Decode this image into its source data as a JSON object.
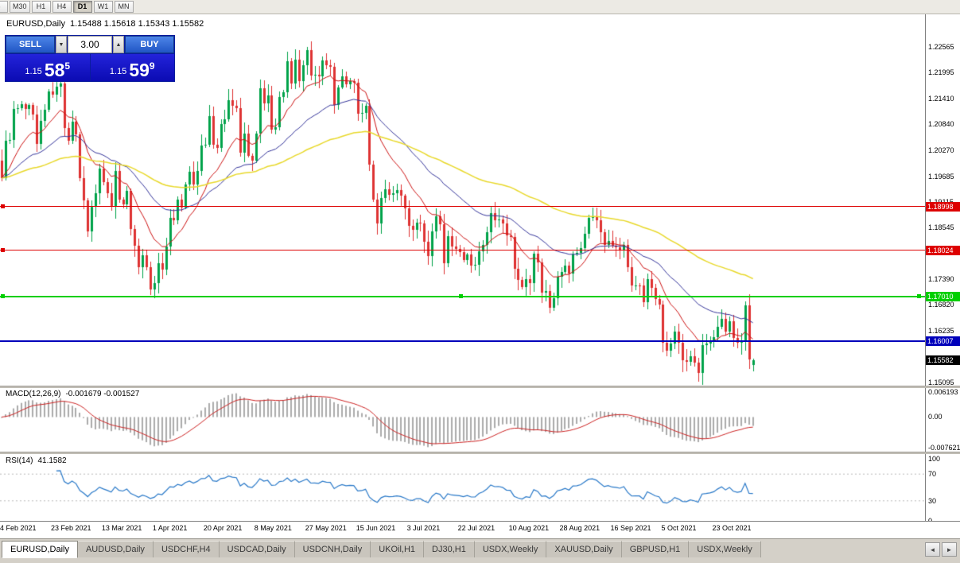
{
  "toolbar": {
    "periods": [
      "5",
      "M30",
      "H1",
      "H4",
      "D1",
      "W1",
      "MN"
    ],
    "active": "D1"
  },
  "chart": {
    "symbol_period": "EURUSD,Daily",
    "ohlc_text": "1.15488 1.15618 1.15343 1.15582"
  },
  "trade_panel": {
    "sell_label": "SELL",
    "buy_label": "BUY",
    "volume": "3.00",
    "sell_price": {
      "prefix": "1.15",
      "big": "58",
      "sup": "5"
    },
    "buy_price": {
      "prefix": "1.15",
      "big": "59",
      "sup": "9"
    }
  },
  "icons": {
    "volume_down": "▼",
    "volume_up": "▲",
    "tabs_scroll_left": "◄",
    "tabs_scroll_right": "►"
  },
  "price_axis": {
    "ticks": [
      "1.22565",
      "1.21995",
      "1.21410",
      "1.20840",
      "1.20270",
      "1.19685",
      "1.19115",
      "1.18545",
      "1.17390",
      "1.16820",
      "1.16235",
      "1.15095"
    ],
    "current_price": {
      "label": "1.15582",
      "price": 1.15582,
      "color": "#000000"
    }
  },
  "chart_data": {
    "type": "candlestick",
    "symbol": "EURUSD",
    "timeframe": "Daily",
    "last_candle": {
      "open": 1.15488,
      "high": 1.15618,
      "low": 1.15343,
      "close": 1.15582
    },
    "ylim": [
      1.1502,
      1.2329
    ],
    "candle_up_color": "#00a24a",
    "candle_down_color": "#de3232",
    "closes": [
      1.1964,
      1.2048,
      1.205,
      1.2119,
      1.212,
      1.2129,
      1.2119,
      1.2127,
      1.2105,
      1.204,
      1.2091,
      1.2117,
      1.2157,
      1.215,
      1.2168,
      1.2175,
      1.2075,
      1.2047,
      1.209,
      1.2062,
      1.1965,
      1.1915,
      1.1845,
      1.19,
      1.193,
      1.1985,
      1.1955,
      1.193,
      1.19,
      1.198,
      1.1917,
      1.1905,
      1.1935,
      1.185,
      1.1813,
      1.1765,
      1.1793,
      1.1765,
      1.1716,
      1.173,
      1.1775,
      1.176,
      1.1812,
      1.1875,
      1.187,
      1.1916,
      1.1899,
      1.195,
      1.1978,
      1.195,
      1.1981,
      1.2036,
      1.2038,
      1.2102,
      1.2038,
      1.2031,
      1.2084,
      1.2095,
      1.2138,
      1.2125,
      1.212,
      1.202,
      1.2063,
      1.2014,
      1.2003,
      1.2063,
      1.2165,
      1.213,
      1.2148,
      1.2073,
      1.2078,
      1.2145,
      1.2155,
      1.2224,
      1.2175,
      1.2228,
      1.218,
      1.2215,
      1.225,
      1.2192,
      1.2195,
      1.219,
      1.2227,
      1.2215,
      1.2212,
      1.2127,
      1.2166,
      1.219,
      1.2174,
      1.218,
      1.2177,
      1.2107,
      1.211,
      1.2125,
      1.1995,
      1.1917,
      1.1863,
      1.192,
      1.194,
      1.1927,
      1.193,
      1.1937,
      1.1925,
      1.1897,
      1.1858,
      1.1849,
      1.1865,
      1.1863,
      1.1823,
      1.179,
      1.1845,
      1.1879,
      1.1861,
      1.1775,
      1.1835,
      1.1812,
      1.1807,
      1.18,
      1.1782,
      1.1794,
      1.177,
      1.1771,
      1.1801,
      1.1816,
      1.1843,
      1.1887,
      1.187,
      1.1872,
      1.1864,
      1.1836,
      1.1833,
      1.1762,
      1.1738,
      1.1721,
      1.1739,
      1.173,
      1.1796,
      1.1777,
      1.171,
      1.1712,
      1.1675,
      1.1697,
      1.1745,
      1.1755,
      1.177,
      1.1752,
      1.1795,
      1.1797,
      1.1809,
      1.184,
      1.1875,
      1.188,
      1.187,
      1.1843,
      1.1816,
      1.1825,
      1.1813,
      1.181,
      1.1803,
      1.1816,
      1.1766,
      1.1725,
      1.1726,
      1.1725,
      1.1688,
      1.174,
      1.172,
      1.1695,
      1.1683,
      1.1597,
      1.158,
      1.1595,
      1.1622,
      1.1598,
      1.1558,
      1.1555,
      1.1567,
      1.1553,
      1.153,
      1.1592,
      1.1596,
      1.1601,
      1.161,
      1.1633,
      1.1651,
      1.1623,
      1.1645,
      1.1608,
      1.1597,
      1.1602,
      1.1681,
      1.156,
      1.15582
    ],
    "x_tick_indices": [
      0,
      13,
      26,
      39,
      52,
      65,
      78,
      91,
      104,
      117,
      130,
      143,
      156,
      169,
      182
    ],
    "x_labels": [
      "4 Feb 2021",
      "23 Feb 2021",
      "13 Mar 2021",
      "1 Apr 2021",
      "20 Apr 2021",
      "8 May 2021",
      "27 May 2021",
      "15 Jun 2021",
      "3 Jul 2021",
      "22 Jul 2021",
      "10 Aug 2021",
      "28 Aug 2021",
      "16 Sep 2021",
      "5 Oct 2021",
      "23 Oct 2021"
    ],
    "moving_averages": [
      {
        "type": "ema",
        "period": 13,
        "color": "#cc1111",
        "width": 1
      },
      {
        "type": "ema",
        "period": 34,
        "color": "#333399",
        "width": 1
      },
      {
        "type": "ema",
        "period": 89,
        "color": "#e8d82a",
        "width": 1.5
      }
    ],
    "hlines": [
      {
        "price": 1.18998,
        "label": "1.18998",
        "color": "#dd0000",
        "width": 1,
        "handles": "left"
      },
      {
        "price": 1.18024,
        "label": "1.18024",
        "color": "#dd0000",
        "width": 1,
        "handles": "left"
      },
      {
        "price": 1.1701,
        "label": "1.17010",
        "color": "#00cf00",
        "width": 2,
        "handles": "full"
      },
      {
        "price": 1.16007,
        "label": "1.16007",
        "color": "#0000bb",
        "width": 2,
        "handles": "none"
      }
    ],
    "indicators": {
      "macd": {
        "label": "MACD(12,26,9)",
        "values_text": "-0.001679 -0.001527",
        "fast": 12,
        "slow": 26,
        "signal": 9,
        "axis": [
          "0.006193",
          "0.00",
          "-0.007621"
        ],
        "ylim": [
          -0.0086,
          0.0072
        ],
        "histogram_color": "#ababab",
        "signal_color": "#cc2222"
      },
      "rsi": {
        "label": "RSI(14)",
        "value": "41.1582",
        "period": 14,
        "axis": [
          "100",
          "70",
          "30",
          "0"
        ],
        "levels": [
          70,
          30
        ],
        "color": "#2878c8"
      }
    }
  },
  "tabs": {
    "items": [
      {
        "label": "EURUSD,Daily",
        "active": true
      },
      {
        "label": "AUDUSD,Daily"
      },
      {
        "label": "USDCHF,H4"
      },
      {
        "label": "USDCAD,Daily"
      },
      {
        "label": "USDCNH,Daily"
      },
      {
        "label": "UKOil,H1"
      },
      {
        "label": "DJ30,H1"
      },
      {
        "label": "USDX,Weekly"
      },
      {
        "label": "XAUUSD,Daily"
      },
      {
        "label": "GBPUSD,H1"
      },
      {
        "label": "USDX,Weekly"
      }
    ]
  }
}
